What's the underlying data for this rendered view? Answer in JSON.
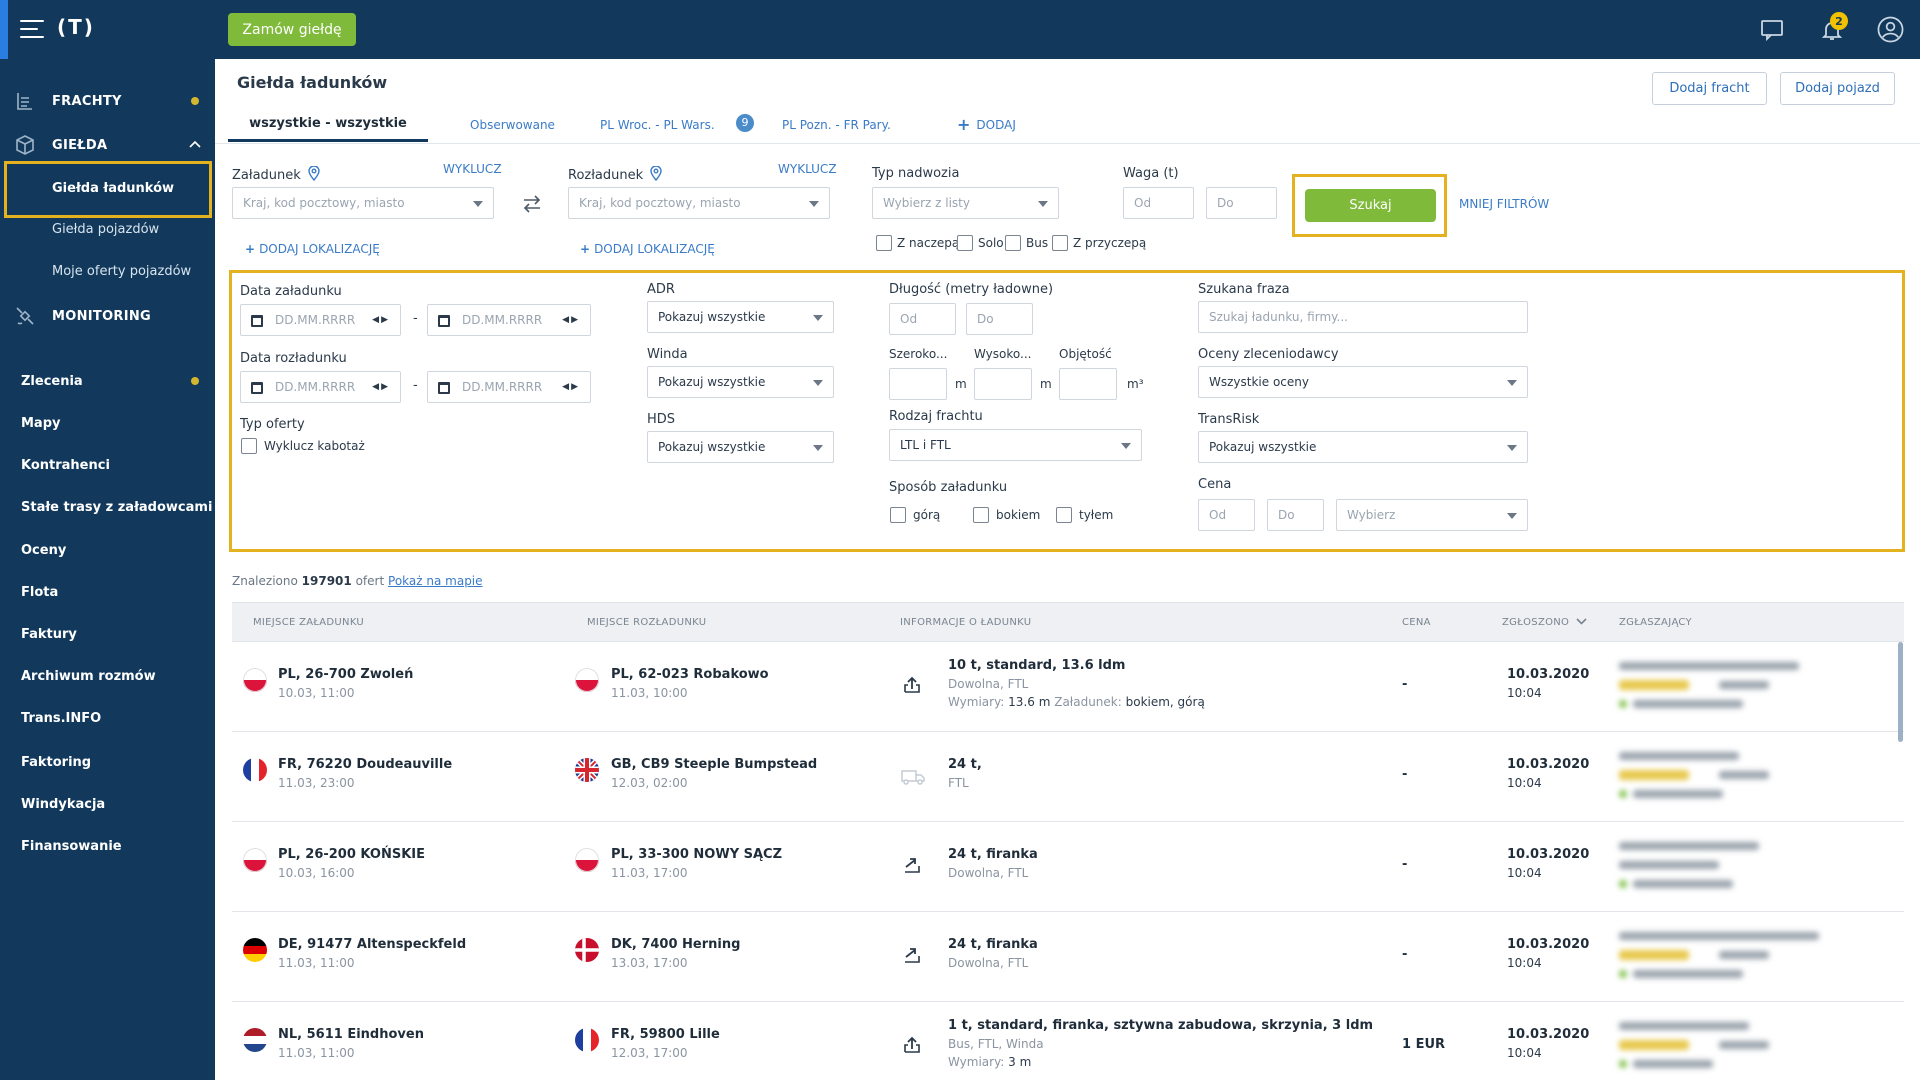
{
  "topbar": {
    "logo": "(T)",
    "order_button": "Zamów giełdę",
    "notifications_count": "2"
  },
  "sidebar": {
    "fracht": "FRACHTY",
    "gielda": "GIEŁDA",
    "gielda_sub": [
      "Giełda ładunków",
      "Giełda pojazdów",
      "Moje oferty pojazdów"
    ],
    "monitoring": "MONITORING",
    "plain_items": [
      "Zlecenia",
      "Mapy",
      "Kontrahenci",
      "Stałe trasy z załadowcami",
      "Oceny",
      "Flota",
      "Faktury",
      "Archiwum rozmów",
      "Trans.INFO",
      "Faktoring",
      "Windykacja",
      "Finansowanie"
    ]
  },
  "header": {
    "title": "Giełda ładunków",
    "add_freight": "Dodaj fracht",
    "add_vehicle": "Dodaj pojazd"
  },
  "tabs": {
    "all": "wszystkie - wszystkie",
    "watched": "Obserwowane",
    "t1": "PL Wroc. - PL Wars.",
    "t1_count": "9",
    "t2": "PL Pozn. - FR Pary.",
    "add": "DODAJ"
  },
  "filters": {
    "loading_label": "Załadunek",
    "exclude": "WYKLUCZ",
    "loading_ph": "Kraj, kod pocztowy, miasto",
    "unloading_label": "Rozładunek",
    "unloading_ph": "Kraj, kod pocztowy, miasto",
    "add_location": "DODAJ LOKALIZACJĘ",
    "body_label": "Typ nadwozia",
    "body_ph": "Wybierz z listy",
    "weight_label": "Waga (t)",
    "from": "Od",
    "to": "Do",
    "search": "Szukaj",
    "less_filters": "MNIEJ FILTRÓW",
    "body_types": [
      "Z naczepą",
      "Solo",
      "Bus",
      "Z przyczepą"
    ]
  },
  "advanced": {
    "loading_date": "Data załadunku",
    "unloading_date": "Data rozładunku",
    "date_ph": "DD.MM.RRRR",
    "offer_type": "Typ oferty",
    "exclude_cabotage": "Wyklucz kabotaż",
    "adr": "ADR",
    "winch": "Winda",
    "hds": "HDS",
    "show_all": "Pokazuj wszystkie",
    "length": "Długość (metry ładowne)",
    "width": "Szeroko...",
    "height": "Wysoko...",
    "volume": "Objętość",
    "unit_m": "m",
    "unit_m3": "m³",
    "freight_kind": "Rodzaj frachtu",
    "freight_kind_val": "LTL i FTL",
    "loading_method": "Sposób załadunku",
    "methods": [
      "górą",
      "bokiem",
      "tyłem"
    ],
    "phrase": "Szukana fraza",
    "phrase_ph": "Szukaj ładunku, firmy...",
    "ratings": "Oceny zleceniodawcy",
    "ratings_val": "Wszystkie oceny",
    "transrisk": "TransRisk",
    "price": "Cena",
    "choose": "Wybierz"
  },
  "results": {
    "found_prefix": "Znaleziono",
    "found_count": "197901",
    "found_suffix": "ofert",
    "map_link": "Pokaż na mapie",
    "columns": [
      "MIEJSCE ZAŁADUNKU",
      "MIEJSCE ROZŁADUNKU",
      "INFORMACJE O ŁADUNKU",
      "CENA",
      "ZGŁOSZONO",
      "ZGŁASZAJĄCY"
    ],
    "rows": [
      {
        "from": "PL, 26-700 Zwoleń",
        "from_date": "10.03, 11:00",
        "to": "PL, 62-023 Robakowo",
        "to_date": "11.03, 10:00",
        "info": "10 t, standard, 13.6 ldm",
        "info2": "Dowolna, FTL",
        "info3_label": "Wymiary:",
        "info3_val": "13.6 m",
        "info3_label2": "Załadunek:",
        "info3_val2": "bokiem, górą",
        "price": "-",
        "date": "10.03.2020",
        "time": "10:04",
        "from_flag": "pl",
        "to_flag": "pl"
      },
      {
        "from": "FR, 76220 Doudeauville",
        "from_date": "11.03, 23:00",
        "to": "GB, CB9 Steeple Bumpstead",
        "to_date": "12.03, 02:00",
        "info": "24 t,",
        "info2": "FTL",
        "price": "-",
        "date": "10.03.2020",
        "time": "10:04",
        "from_flag": "fr",
        "to_flag": "gb"
      },
      {
        "from": "PL, 26-200 KOŃSKIE",
        "from_date": "10.03, 16:00",
        "to": "PL, 33-300 NOWY SĄCZ",
        "to_date": "11.03, 17:00",
        "info": "24 t, firanka",
        "info2": "Dowolna, FTL",
        "price": "-",
        "date": "10.03.2020",
        "time": "10:04",
        "from_flag": "pl",
        "to_flag": "pl"
      },
      {
        "from": "DE, 91477 Altenspeckfeld",
        "from_date": "11.03, 11:00",
        "to": "DK, 7400 Herning",
        "to_date": "13.03, 17:00",
        "info": "24 t, firanka",
        "info2": "Dowolna, FTL",
        "price": "-",
        "date": "10.03.2020",
        "time": "10:04",
        "from_flag": "de",
        "to_flag": "dk"
      },
      {
        "from": "NL, 5611 Eindhoven",
        "from_date": "11.03, 11:00",
        "to": "FR, 59800 Lille",
        "to_date": "12.03, 17:00",
        "info": "1 t, standard, firanka, sztywna zabudowa, skrzynia, 3 ldm",
        "info2": "Bus, FTL, Winda",
        "info3_label": "Wymiary:",
        "info3_val": "3 m",
        "price": "1 EUR",
        "date": "10.03.2020",
        "time": "10:04",
        "from_flag": "nl",
        "to_flag": "fr"
      }
    ]
  },
  "colors": {
    "navy": "#12395b",
    "green": "#7fba3b",
    "highlight": "#e4b21f",
    "link": "#3a7bc8"
  }
}
